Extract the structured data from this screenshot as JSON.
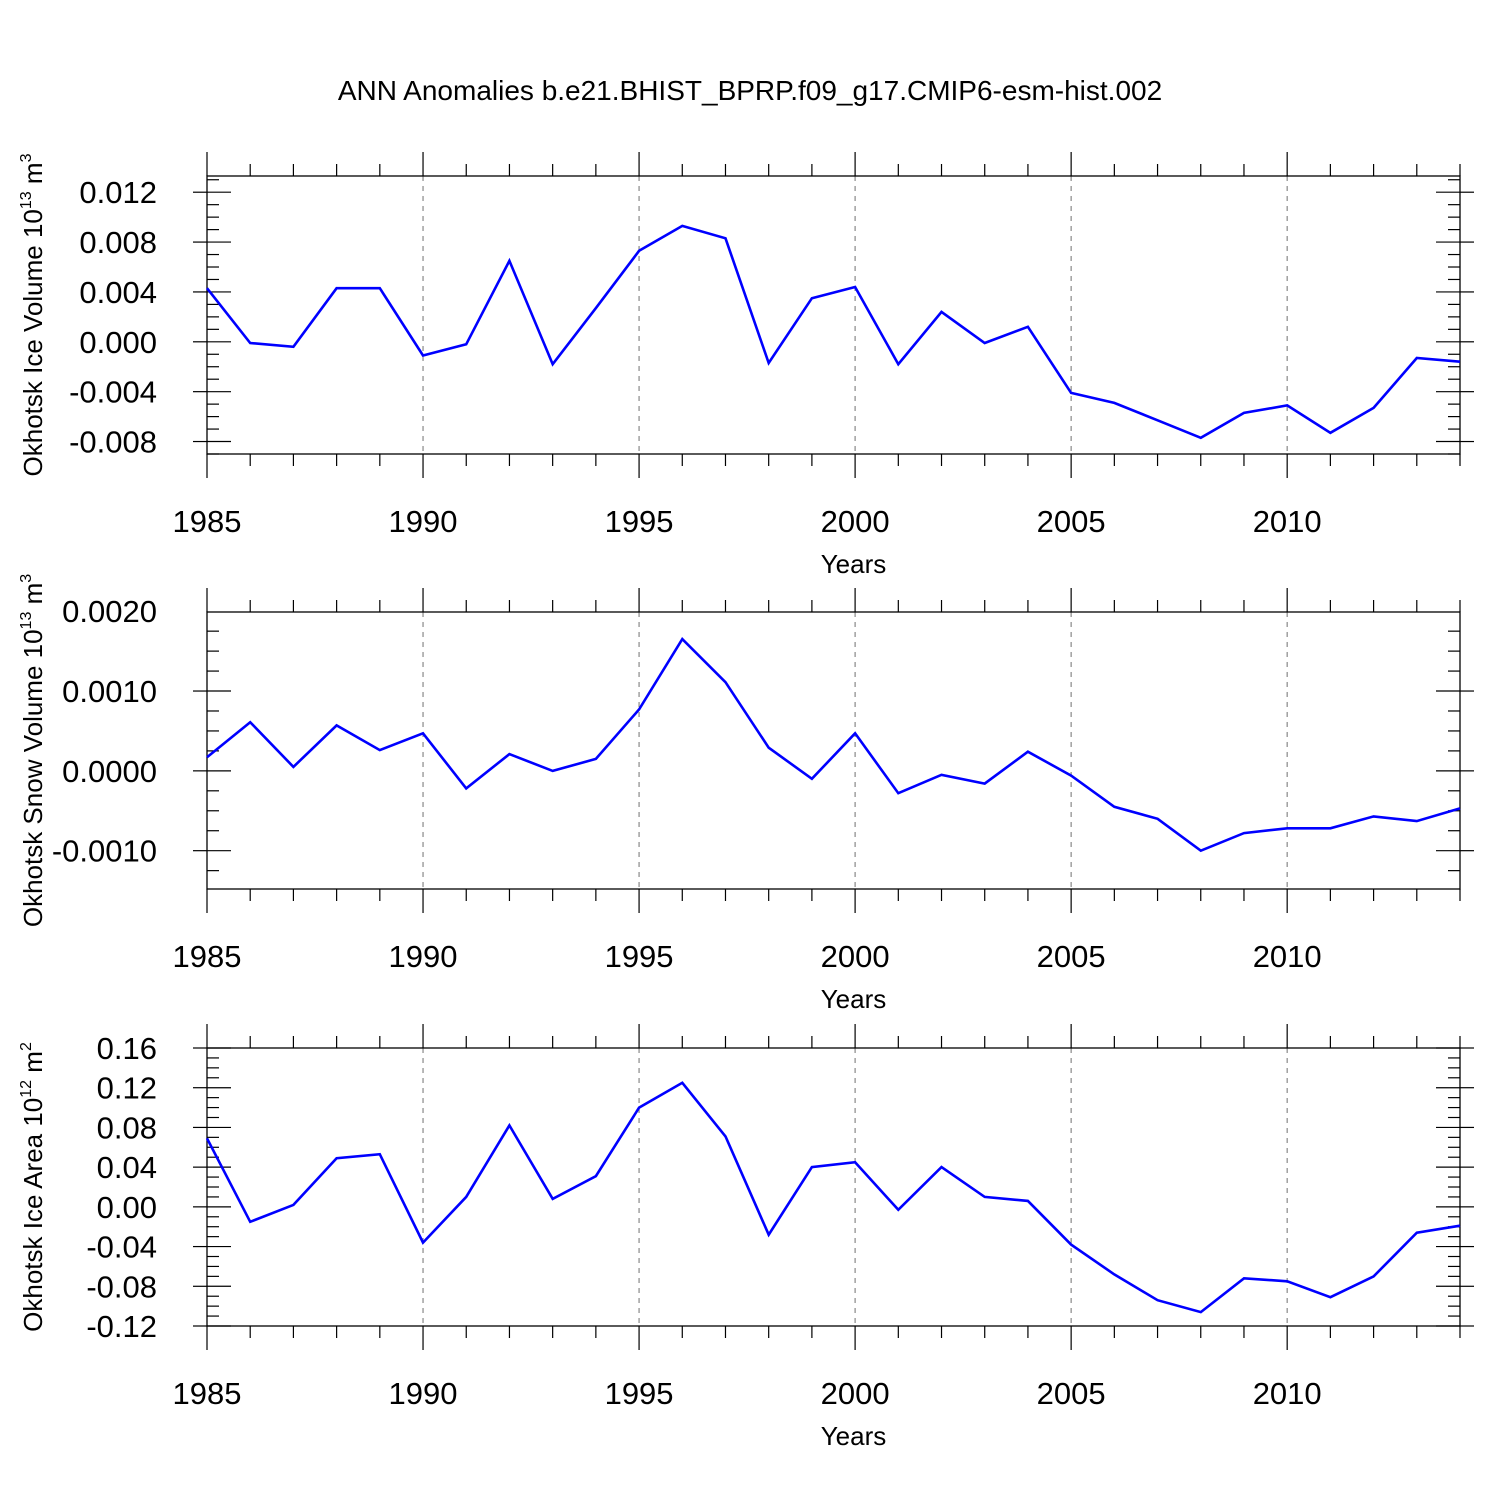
{
  "title": "ANN Anomalies b.e21.BHIST_BPRP.f09_g17.CMIP6-esm-hist.002",
  "chart_data": [
    {
      "type": "line",
      "ylabel": "Okhotsk Ice Volume",
      "units": {
        "base": "10",
        "exp": "13",
        "unit": "m",
        "unit_exp": "3"
      },
      "xlabel": "Years",
      "xlim": [
        1985,
        2014
      ],
      "ylim": [
        -0.009,
        0.0133
      ],
      "yticks": [
        -0.008,
        -0.004,
        0.0,
        0.004,
        0.008,
        0.012
      ],
      "yticklabels": [
        "-0.008",
        "-0.004",
        "0.000",
        "0.004",
        "0.008",
        "0.012"
      ],
      "xticks": [
        1985,
        1990,
        1995,
        2000,
        2005,
        2010
      ],
      "xticklabels": [
        "1985",
        "1990",
        "1995",
        "2000",
        "2005",
        "2010"
      ],
      "grid": "dashed vertical at major x ticks",
      "series": [
        {
          "color": "#0000ff",
          "x": [
            1985,
            1986,
            1987,
            1988,
            1989,
            1990,
            1991,
            1992,
            1993,
            1994,
            1995,
            1996,
            1997,
            1998,
            1999,
            2000,
            2001,
            2002,
            2003,
            2004,
            2005,
            2006,
            2007,
            2008,
            2009,
            2010,
            2011,
            2012,
            2013,
            2014
          ],
          "y": [
            0.0043,
            -0.0001,
            -0.0004,
            0.0043,
            0.0043,
            -0.0011,
            -0.0002,
            0.0065,
            -0.0018,
            0.0027,
            0.0073,
            0.0093,
            0.0083,
            -0.0017,
            0.0035,
            0.0044,
            -0.0018,
            0.0024,
            -0.0001,
            0.0012,
            -0.0041,
            -0.0049,
            -0.0063,
            -0.0077,
            -0.0057,
            -0.0051,
            -0.0073,
            -0.0053,
            -0.0013,
            -0.0016
          ]
        }
      ]
    },
    {
      "type": "line",
      "ylabel": "Okhotsk Snow Volume",
      "units": {
        "base": "10",
        "exp": "13",
        "unit": "m",
        "unit_exp": "3"
      },
      "xlabel": "Years",
      "xlim": [
        1985,
        2014
      ],
      "ylim": [
        -0.00148,
        0.00199
      ],
      "yticks": [
        -0.001,
        0.0,
        0.001,
        0.002
      ],
      "yticklabels": [
        "-0.0010",
        "0.0000",
        "0.0010",
        "0.0020"
      ],
      "xticks": [
        1985,
        1990,
        1995,
        2000,
        2005,
        2010
      ],
      "xticklabels": [
        "1985",
        "1990",
        "1995",
        "2000",
        "2005",
        "2010"
      ],
      "grid": "dashed vertical at major x ticks",
      "series": [
        {
          "color": "#0000ff",
          "x": [
            1985,
            1986,
            1987,
            1988,
            1989,
            1990,
            1991,
            1992,
            1993,
            1994,
            1995,
            1996,
            1997,
            1998,
            1999,
            2000,
            2001,
            2002,
            2003,
            2004,
            2005,
            2006,
            2007,
            2008,
            2009,
            2010,
            2011,
            2012,
            2013,
            2014
          ],
          "y": [
            0.00017,
            0.00061,
            5e-05,
            0.00057,
            0.00026,
            0.00047,
            -0.00022,
            0.00021,
            0.0,
            0.00015,
            0.00077,
            0.00165,
            0.00111,
            0.00029,
            -0.0001,
            0.00047,
            -0.00028,
            -5e-05,
            -0.00016,
            0.00024,
            -6e-05,
            -0.00045,
            -0.0006,
            -0.001,
            -0.00078,
            -0.00072,
            -0.00072,
            -0.00057,
            -0.00063,
            -0.00047
          ]
        }
      ]
    },
    {
      "type": "line",
      "ylabel": "Okhotsk Ice Area",
      "units": {
        "base": "10",
        "exp": "12",
        "unit": "m",
        "unit_exp": "2"
      },
      "xlabel": "Years",
      "xlim": [
        1985,
        2014
      ],
      "ylim": [
        -0.12,
        0.16
      ],
      "yticks": [
        -0.12,
        -0.08,
        -0.04,
        0.0,
        0.04,
        0.08,
        0.12,
        0.16
      ],
      "yticklabels": [
        "-0.12",
        "-0.08",
        "-0.04",
        "0.00",
        "0.04",
        "0.08",
        "0.12",
        "0.16"
      ],
      "xticks": [
        1985,
        1990,
        1995,
        2000,
        2005,
        2010
      ],
      "xticklabels": [
        "1985",
        "1990",
        "1995",
        "2000",
        "2005",
        "2010"
      ],
      "grid": "dashed vertical at major x ticks",
      "series": [
        {
          "color": "#0000ff",
          "x": [
            1985,
            1986,
            1987,
            1988,
            1989,
            1990,
            1991,
            1992,
            1993,
            1994,
            1995,
            1996,
            1997,
            1998,
            1999,
            2000,
            2001,
            2002,
            2003,
            2004,
            2005,
            2006,
            2007,
            2008,
            2009,
            2010,
            2011,
            2012,
            2013,
            2014
          ],
          "y": [
            0.069,
            -0.015,
            0.002,
            0.049,
            0.053,
            -0.036,
            0.01,
            0.082,
            0.008,
            0.031,
            0.1,
            0.125,
            0.071,
            -0.028,
            0.04,
            0.045,
            -0.003,
            0.04,
            0.01,
            0.006,
            -0.038,
            -0.068,
            -0.094,
            -0.106,
            -0.072,
            -0.075,
            -0.091,
            -0.07,
            -0.026,
            -0.019
          ]
        }
      ]
    }
  ]
}
